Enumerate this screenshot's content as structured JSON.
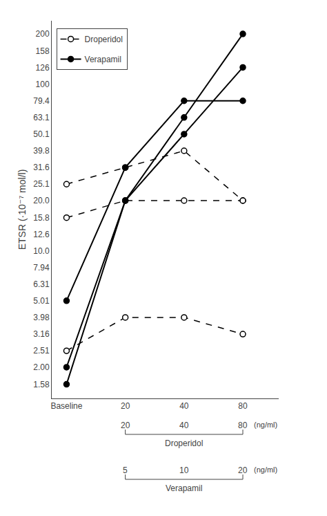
{
  "chart_data": {
    "type": "line",
    "y_label": "ETSR (·10⁻⁷ mol/l)",
    "categories": [
      "Baseline",
      "20",
      "40",
      "80"
    ],
    "series": [
      {
        "name": "Droperidol",
        "color": "black",
        "marker": "open_circle",
        "line_style": "dashed",
        "values": [
          25.1,
          31.6,
          39.8,
          20.0
        ]
      },
      {
        "name": "Droperidol",
        "color": "black",
        "marker": "open_circle",
        "line_style": "dashed",
        "values": [
          15.8,
          20.0,
          20.0,
          20.0
        ]
      },
      {
        "name": "Droperidol",
        "color": "black",
        "marker": "open_circle",
        "line_style": "dashed",
        "values": [
          2.51,
          3.98,
          3.98,
          3.16
        ]
      },
      {
        "name": "Verapamil",
        "color": "black",
        "marker": "filled_circle",
        "line_style": "solid",
        "values": [
          5.01,
          31.6,
          79.4,
          79.4
        ]
      },
      {
        "name": "Verapamil",
        "color": "black",
        "marker": "filled_circle",
        "line_style": "solid",
        "values": [
          2.0,
          20.0,
          50.1,
          126
        ]
      },
      {
        "name": "Verapamil",
        "color": "black",
        "marker": "filled_circle",
        "line_style": "solid",
        "values": [
          1.58,
          20.0,
          63.1,
          200
        ]
      }
    ],
    "log": "y",
    "ylim": [
      1.3,
      240
    ],
    "yticks": [
      1.58,
      {
        "value": 2.0,
        "label": "2.00"
      },
      2.51,
      3.16,
      3.98,
      5.01,
      6.31,
      7.94,
      {
        "value": 10.0,
        "label": "10.0"
      },
      12.6,
      15.8,
      {
        "value": 20.0,
        "label": "20.0"
      },
      25.1,
      31.6,
      39.8,
      50.1,
      63.1,
      79.4,
      100,
      126,
      158,
      200
    ],
    "grid": false,
    "legend": "upper left",
    "annotations": [
      {
        "label": "Droperidol",
        "doses": [
          20,
          40,
          80
        ],
        "unit": "(ng/ml)"
      },
      {
        "label": "Verapamil",
        "doses": [
          5,
          10,
          20
        ],
        "unit": "(ng/ml)"
      }
    ]
  }
}
